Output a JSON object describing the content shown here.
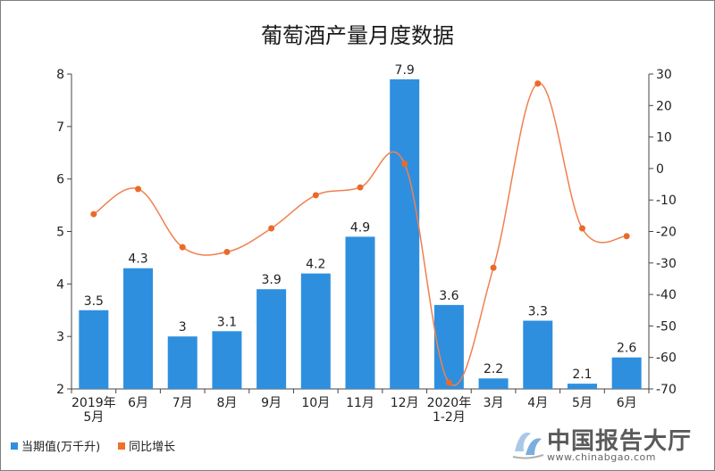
{
  "chart_data": {
    "type": "bar",
    "title": "葡萄酒产量月度数据",
    "categories": [
      "2019年\n5月",
      "6月",
      "7月",
      "8月",
      "9月",
      "10月",
      "11月",
      "12月",
      "2020年\n1-2月",
      "3月",
      "4月",
      "5月",
      "6月"
    ],
    "series": [
      {
        "name": "当期值(万千升)",
        "type": "bar",
        "axis": "left",
        "color": "#2f8fdf",
        "values": [
          3.5,
          4.3,
          3,
          3.1,
          3.9,
          4.2,
          4.9,
          7.9,
          3.6,
          2.2,
          3.3,
          2.1,
          2.6
        ]
      },
      {
        "name": "同比增长",
        "type": "line",
        "axis": "right",
        "color": "#f08050",
        "values": [
          -14.5,
          -6.5,
          -25,
          -26.5,
          -19,
          -8.5,
          -6,
          1.5,
          -68,
          -31.5,
          27,
          -19,
          -21.5
        ]
      }
    ],
    "ylim_left": [
      2,
      8
    ],
    "yticks_left": [
      2,
      3,
      4,
      5,
      6,
      7,
      8
    ],
    "ylim_right": [
      -70,
      30
    ],
    "yticks_right": [
      -70,
      -60,
      -50,
      -40,
      -30,
      -20,
      -10,
      0,
      10,
      20,
      30
    ],
    "legend_position": "bottom-left",
    "grid": false
  },
  "legend": {
    "bar_label": "当期值(万千升)",
    "line_label": "同比增长"
  },
  "watermark": {
    "brand": "中国报告大厅",
    "url": "www.chinabgao.com"
  }
}
